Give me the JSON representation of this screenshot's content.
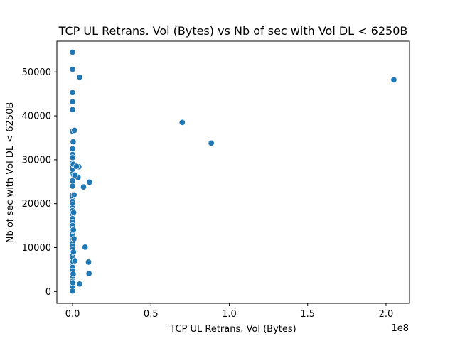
{
  "chart_data": {
    "type": "scatter",
    "title": "TCP UL Retrans. Vol (Bytes) vs Nb of sec with Vol DL < 6250B",
    "xlabel": "TCP UL Retrans. Vol (Bytes)",
    "ylabel": "Nb of sec with Vol DL < 6250B",
    "x_scale_note": "1e8",
    "xlim": [
      -10000000,
      215000000
    ],
    "ylim": [
      -2700,
      57000
    ],
    "x_ticks": [
      0,
      50000000,
      100000000,
      150000000,
      200000000
    ],
    "x_tick_labels": [
      "0.0",
      "0.5",
      "1.0",
      "1.5",
      "2.0"
    ],
    "y_ticks": [
      0,
      10000,
      20000,
      30000,
      40000,
      50000
    ],
    "y_tick_labels": [
      "0",
      "10000",
      "20000",
      "30000",
      "40000",
      "50000"
    ],
    "grid": false,
    "point_color": "#1f77b4",
    "points": [
      {
        "x": 0,
        "y": 54500
      },
      {
        "x": 0,
        "y": 50600
      },
      {
        "x": 0,
        "y": 45300
      },
      {
        "x": 0,
        "y": 43200
      },
      {
        "x": 0,
        "y": 41400
      },
      {
        "x": 0,
        "y": 36500
      },
      {
        "x": 1200000,
        "y": 36700
      },
      {
        "x": 400000,
        "y": 34100
      },
      {
        "x": 0,
        "y": 32500
      },
      {
        "x": 0,
        "y": 31200
      },
      {
        "x": 0,
        "y": 30500
      },
      {
        "x": 0,
        "y": 29200
      },
      {
        "x": 0,
        "y": 28400
      },
      {
        "x": 0,
        "y": 27600
      },
      {
        "x": 0,
        "y": 26800
      },
      {
        "x": 800000,
        "y": 26500
      },
      {
        "x": 0,
        "y": 25200
      },
      {
        "x": 0,
        "y": 24000
      },
      {
        "x": 0,
        "y": 22000
      },
      {
        "x": 0,
        "y": 21500
      },
      {
        "x": 0,
        "y": 20500
      },
      {
        "x": 0,
        "y": 19800
      },
      {
        "x": 0,
        "y": 19000
      },
      {
        "x": 0,
        "y": 18400
      },
      {
        "x": 0,
        "y": 17500
      },
      {
        "x": 0,
        "y": 16600
      },
      {
        "x": 0,
        "y": 15800
      },
      {
        "x": 0,
        "y": 15000
      },
      {
        "x": 0,
        "y": 14200
      },
      {
        "x": 0,
        "y": 13400
      },
      {
        "x": 0,
        "y": 12600
      },
      {
        "x": 0,
        "y": 11800
      },
      {
        "x": 0,
        "y": 11000
      },
      {
        "x": 0,
        "y": 10300
      },
      {
        "x": 0,
        "y": 9600
      },
      {
        "x": 0,
        "y": 8900
      },
      {
        "x": 0,
        "y": 8200
      },
      {
        "x": 0,
        "y": 7500
      },
      {
        "x": 0,
        "y": 6800
      },
      {
        "x": 0,
        "y": 6200
      },
      {
        "x": 0,
        "y": 5500
      },
      {
        "x": 0,
        "y": 4700
      },
      {
        "x": 0,
        "y": 3900
      },
      {
        "x": 0,
        "y": 3100
      },
      {
        "x": 0,
        "y": 2300
      },
      {
        "x": 0,
        "y": 1500
      },
      {
        "x": 0,
        "y": 800
      },
      {
        "x": 0,
        "y": 100
      },
      {
        "x": 1000000,
        "y": 22000
      },
      {
        "x": 700000,
        "y": 18000
      },
      {
        "x": 500000,
        "y": 14000
      },
      {
        "x": 900000,
        "y": 12000
      },
      {
        "x": 600000,
        "y": 9000
      },
      {
        "x": 300000,
        "y": 6800
      },
      {
        "x": 1500000,
        "y": 7000
      },
      {
        "x": 400000,
        "y": 4000
      },
      {
        "x": 200000,
        "y": 2000
      },
      {
        "x": 500000,
        "y": 29000
      },
      {
        "x": 4000000,
        "y": 28400
      },
      {
        "x": 2500000,
        "y": 28500
      },
      {
        "x": 3500000,
        "y": 26000
      },
      {
        "x": 1500000,
        "y": 26500
      },
      {
        "x": 4500000,
        "y": 48800
      },
      {
        "x": 10800000,
        "y": 24900
      },
      {
        "x": 7000000,
        "y": 23800
      },
      {
        "x": 8000000,
        "y": 10100
      },
      {
        "x": 10200000,
        "y": 6700
      },
      {
        "x": 10500000,
        "y": 4100
      },
      {
        "x": 4500000,
        "y": 1700
      },
      {
        "x": 70000000,
        "y": 38500
      },
      {
        "x": 88500000,
        "y": 33800
      },
      {
        "x": 205000000,
        "y": 48200
      }
    ]
  }
}
